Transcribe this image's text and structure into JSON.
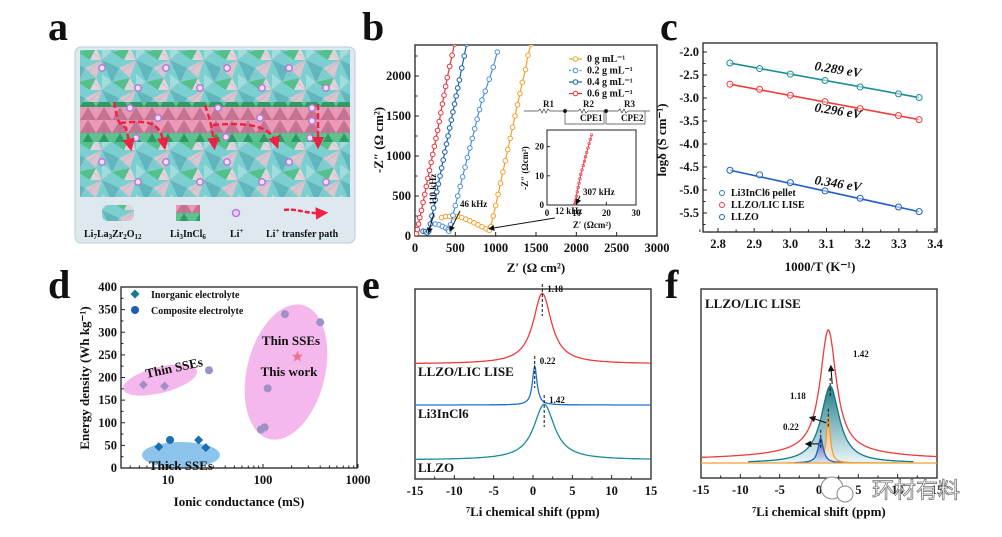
{
  "panels": {
    "a": {
      "label": "a"
    },
    "b": {
      "label": "b"
    },
    "c": {
      "label": "c"
    },
    "d": {
      "label": "d"
    },
    "e": {
      "label": "e"
    },
    "f": {
      "label": "f"
    }
  },
  "schematic": {
    "legend": [
      {
        "key": "llzo",
        "label": "Li7La3Zr2O12"
      },
      {
        "key": "lic",
        "label": "Li3InCl6"
      },
      {
        "key": "li",
        "label": "Li+"
      },
      {
        "key": "path",
        "label": "Li+ transfer path"
      }
    ],
    "colors": {
      "teal": "#6cc4c8",
      "pink": "#e7a3bd",
      "green": "#5fbf8a",
      "mauve": "#d8c1cc",
      "li_ion": "#b678d8",
      "path": "#ee2244",
      "box_bg": "#dbe8ee"
    }
  },
  "watermark": {
    "text": "环材有料"
  },
  "chart_data": [
    {
      "id": "b",
      "type": "scatter",
      "xlabel": "Z′ (Ω cm²)",
      "ylabel": "-Z″ (Ω cm²)",
      "xlim": [
        0,
        3000
      ],
      "ylim": [
        0,
        2400
      ],
      "xticks": [
        0,
        500,
        1000,
        1500,
        2000,
        2500,
        3000
      ],
      "yticks": [
        0,
        500,
        1000,
        1500,
        2000
      ],
      "legend_position": "top-right",
      "series": [
        {
          "name": "0 g mL⁻¹",
          "color": "#f0a030",
          "points": [
            [
              330,
              230
            ],
            [
              380,
              245
            ],
            [
              430,
              245
            ],
            [
              480,
              240
            ],
            [
              530,
              245
            ],
            [
              580,
              230
            ],
            [
              630,
              210
            ],
            [
              680,
              190
            ],
            [
              730,
              165
            ],
            [
              780,
              140
            ],
            [
              830,
              115
            ],
            [
              880,
              90
            ],
            [
              920,
              70
            ],
            [
              940,
              120
            ],
            [
              970,
              250
            ],
            [
              1000,
              380
            ],
            [
              1030,
              520
            ],
            [
              1060,
              660
            ],
            [
              1090,
              800
            ],
            [
              1120,
              940
            ],
            [
              1150,
              1080
            ],
            [
              1180,
              1220
            ],
            [
              1210,
              1360
            ],
            [
              1240,
              1500
            ],
            [
              1270,
              1640
            ],
            [
              1300,
              1780
            ],
            [
              1330,
              1920
            ],
            [
              1370,
              2080
            ],
            [
              1400,
              2260
            ],
            [
              1440,
              2400
            ]
          ]
        },
        {
          "name": "0.2 g mL⁻¹",
          "color": "#4a8fe0",
          "points": [
            [
              250,
              150
            ],
            [
              300,
              140
            ],
            [
              340,
              120
            ],
            [
              380,
              100
            ],
            [
              410,
              80
            ],
            [
              420,
              60
            ],
            [
              440,
              140
            ],
            [
              470,
              260
            ],
            [
              500,
              380
            ],
            [
              530,
              500
            ],
            [
              560,
              620
            ],
            [
              590,
              740
            ],
            [
              620,
              860
            ],
            [
              650,
              980
            ],
            [
              680,
              1100
            ],
            [
              710,
              1220
            ],
            [
              740,
              1340
            ],
            [
              770,
              1460
            ],
            [
              800,
              1580
            ],
            [
              830,
              1700
            ],
            [
              870,
              1810
            ],
            [
              920,
              1960
            ],
            [
              970,
              2110
            ],
            [
              1020,
              2300
            ]
          ]
        },
        {
          "name": "0.4 g mL⁻¹",
          "color": "#1a5fb4",
          "points": [
            [
              100,
              60
            ],
            [
              130,
              55
            ],
            [
              150,
              40
            ],
            [
              170,
              60
            ],
            [
              190,
              150
            ],
            [
              210,
              250
            ],
            [
              230,
              350
            ],
            [
              250,
              450
            ],
            [
              270,
              550
            ],
            [
              290,
              650
            ],
            [
              310,
              750
            ],
            [
              330,
              850
            ],
            [
              350,
              950
            ],
            [
              370,
              1050
            ],
            [
              390,
              1150
            ],
            [
              410,
              1250
            ],
            [
              430,
              1350
            ],
            [
              450,
              1450
            ],
            [
              470,
              1550
            ],
            [
              490,
              1650
            ],
            [
              510,
              1750
            ],
            [
              530,
              1850
            ],
            [
              550,
              1950
            ],
            [
              580,
              2100
            ],
            [
              610,
              2250
            ],
            [
              640,
              2400
            ]
          ]
        },
        {
          "name": "0.6 g mL⁻¹",
          "color": "#e8323a",
          "points": [
            [
              10,
              5
            ],
            [
              20,
              30
            ],
            [
              30,
              80
            ],
            [
              45,
              150
            ],
            [
              60,
              230
            ],
            [
              80,
              320
            ],
            [
              100,
              420
            ],
            [
              120,
              520
            ],
            [
              140,
              620
            ],
            [
              160,
              720
            ],
            [
              180,
              820
            ],
            [
              200,
              920
            ],
            [
              220,
              1020
            ],
            [
              240,
              1120
            ],
            [
              260,
              1220
            ],
            [
              280,
              1320
            ],
            [
              300,
              1430
            ],
            [
              320,
              1540
            ],
            [
              340,
              1650
            ],
            [
              360,
              1760
            ],
            [
              380,
              1870
            ],
            [
              400,
              1980
            ],
            [
              430,
              2120
            ],
            [
              460,
              2260
            ],
            [
              490,
              2400
            ]
          ]
        }
      ],
      "annotations": [
        {
          "text": "110 kHz",
          "x": 150,
          "y": 40
        },
        {
          "text": "46 kHz",
          "x": 420,
          "y": 60
        },
        {
          "text": "12 kHz",
          "x": 920,
          "y": 70
        }
      ],
      "circuit": {
        "elements": [
          "R1",
          "R2",
          "CPE1",
          "R3",
          "CPE2"
        ]
      },
      "inset": {
        "xlabel": "Z′ (Ωcm²)",
        "ylabel": "-Z″ (Ωcm²)",
        "xlim": [
          0,
          30
        ],
        "ylim": [
          0,
          25
        ],
        "xticks": [
          0,
          10,
          20,
          30
        ],
        "yticks": [
          0,
          10,
          20
        ],
        "annotation": {
          "text": "307 kHz",
          "x": 9.5,
          "y": 0.3
        },
        "series": [
          {
            "name": "0.6 g mL⁻¹",
            "color": "#e8323a",
            "points": [
              [
                9.3,
                0.3
              ],
              [
                9.6,
                1.5
              ],
              [
                9.9,
                3
              ],
              [
                10.2,
                4.5
              ],
              [
                10.5,
                6
              ],
              [
                10.8,
                7.5
              ],
              [
                11.1,
                9
              ],
              [
                11.4,
                10.5
              ],
              [
                11.8,
                12
              ],
              [
                12.2,
                13.5
              ],
              [
                12.6,
                15
              ],
              [
                13.0,
                16.5
              ],
              [
                13.4,
                18
              ],
              [
                13.8,
                19.5
              ],
              [
                14.2,
                21
              ],
              [
                14.6,
                22.5
              ],
              [
                15.0,
                24
              ]
            ]
          }
        ]
      }
    },
    {
      "id": "c",
      "type": "line",
      "xlabel": "1000/T (K⁻¹)",
      "ylabel": "logδ (S cm⁻¹)",
      "xlim": [
        2.75,
        3.4
      ],
      "ylim": [
        -5.9,
        -1.9
      ],
      "xticks": [
        2.8,
        2.9,
        3.0,
        3.1,
        3.2,
        3.3,
        3.4
      ],
      "yticks": [
        -2.0,
        -2.5,
        -3.0,
        -3.5,
        -4.0,
        -4.5,
        -5.0,
        -5.5
      ],
      "legend_position": "bottom-left",
      "x": [
        2.833,
        2.915,
        3.0,
        3.096,
        3.193,
        3.299,
        3.356
      ],
      "series": [
        {
          "name": "Li3InCl6 pellet",
          "color": "#1a8c96",
          "values": [
            -2.24,
            -2.36,
            -2.48,
            -2.62,
            -2.76,
            -2.91,
            -2.99
          ],
          "label": "0.289 eV",
          "label_at": [
            3.13,
            -2.47
          ]
        },
        {
          "name": "LLZO/LIC LISE",
          "color": "#ee3c3c",
          "values": [
            -2.7,
            -2.81,
            -2.94,
            -3.08,
            -3.23,
            -3.38,
            -3.47
          ],
          "label": "0.296 eV",
          "label_at": [
            3.13,
            -3.37
          ]
        },
        {
          "name": "LLZO",
          "color": "#1f5fc0",
          "values": [
            -4.57,
            -4.67,
            -4.84,
            -5.02,
            -5.18,
            -5.37,
            -5.47
          ],
          "label": "0.346 eV",
          "label_at": [
            3.13,
            -4.95
          ]
        }
      ]
    },
    {
      "id": "d",
      "type": "scatter",
      "xlabel": "Ionic conductance (mS)",
      "ylabel": "Energy density (Wh kg⁻¹)",
      "xscale": "log",
      "xlim": [
        3.2,
        1000
      ],
      "ylim": [
        0,
        400
      ],
      "xticks": [
        10,
        100,
        1000
      ],
      "yticks": [
        0,
        50,
        100,
        150,
        200,
        250,
        300,
        350,
        400
      ],
      "legend_position": "top-left",
      "legend": [
        {
          "name": "Inorganic electrolyte",
          "marker": "diamond",
          "color": "#1a7a8a"
        },
        {
          "name": "Composite electrolyte",
          "marker": "circle",
          "color": "#1a5fb4"
        }
      ],
      "series": [
        {
          "name": "Thick SSEs (inorganic)",
          "marker": "diamond",
          "color": "#1a6fae",
          "points": [
            [
              8,
              47
            ],
            [
              21,
              62
            ],
            [
              25,
              45
            ]
          ]
        },
        {
          "name": "Thick SSEs (composite)",
          "marker": "circle",
          "color": "#1a6fae",
          "points": [
            [
              10.5,
              62
            ]
          ]
        },
        {
          "name": "Thin SSEs (inorganic)",
          "marker": "diamond",
          "color": "#a090c8",
          "points": [
            [
              5.5,
              184
            ],
            [
              9.2,
              181
            ]
          ]
        },
        {
          "name": "Thin SSEs (composite, left)",
          "marker": "circle",
          "color": "#a090c8",
          "points": [
            [
              27,
              216
            ]
          ]
        },
        {
          "name": "Thin SSEs (composite, right)",
          "marker": "circle",
          "color": "#a090c8",
          "points": [
            [
              95,
              85
            ],
            [
              104,
              90
            ],
            [
              112,
              176
            ],
            [
              170,
              340
            ],
            [
              400,
              322
            ]
          ]
        },
        {
          "name": "This work",
          "marker": "star",
          "color": "#f07090",
          "points": [
            [
              230,
              246
            ]
          ]
        }
      ],
      "regions": [
        {
          "label": "Thin SSEs",
          "color": "#f5b8ec",
          "center": [
            12.5,
            200
          ],
          "kind": "left-thin"
        },
        {
          "label": "Thick SSEs",
          "color": "#8cc4ec",
          "center": [
            13,
            49
          ],
          "kind": "thick"
        },
        {
          "label": "Thin SSEs",
          "color": "#f5b8ec",
          "center": [
            190,
            228
          ],
          "kind": "right-thin"
        }
      ],
      "annotations": [
        {
          "text": "This work",
          "color": "#ee2233",
          "x": 200,
          "y": 218
        },
        {
          "text": "Thin SSEs",
          "color": "#111111",
          "x": 200,
          "y": 280
        },
        {
          "text": "Thin SSEs",
          "color": "#111111",
          "x": 9,
          "y": 215,
          "rotation_deg": -12
        },
        {
          "text": "Thick SSEs",
          "color": "#111111",
          "x": 13,
          "y": 18
        }
      ]
    },
    {
      "id": "e",
      "type": "line",
      "xlabel": "⁷Li chemical shift (ppm)",
      "ylabel": "",
      "xlim": [
        -15,
        15
      ],
      "xticks": [
        -15,
        -10,
        -5,
        0,
        5,
        10,
        15
      ],
      "series": [
        {
          "name": "LLZO/LIC LISE",
          "color": "#ee3c3c",
          "peak_ppm": 1.18,
          "peak_label": "1.18",
          "offset": 0.66,
          "height": 0.28,
          "width_ppm": 1.4
        },
        {
          "name": "Li3InCl6",
          "color": "#1f6fd0",
          "peak_ppm": 0.22,
          "peak_label": "0.22",
          "offset": 0.37,
          "height": 0.18,
          "width_ppm": 0.35
        },
        {
          "name": "LLZO",
          "color": "#1a8c9a",
          "peak_ppm": 1.42,
          "peak_label": "1.42",
          "offset": 0.0,
          "height": 0.3,
          "width_ppm": 1.6
        }
      ],
      "labels": [
        {
          "text": "LLZO/LIC LISE",
          "color": "#ee3c3c"
        },
        {
          "text": "Li3InCl6",
          "color": "#1f6fd0"
        },
        {
          "text": "LLZO",
          "color": "#1a8c9a"
        }
      ]
    },
    {
      "id": "f",
      "type": "area",
      "xlabel": "⁷Li chemical shift (ppm)",
      "xlim": [
        -15,
        15
      ],
      "xticks": [
        -15,
        -10,
        -5,
        0,
        5,
        10,
        15
      ],
      "title_label": {
        "text": "LLZO/LIC LISE",
        "color": "#ee3c3c"
      },
      "series": [
        {
          "name": "LLZO/LIC LISE (total)",
          "color": "#ee3c3c",
          "peak_ppm": 1.18,
          "height": 0.88,
          "width_ppm": 1.25,
          "fill": false
        },
        {
          "name": "LLZO component",
          "color": "#137a86",
          "peak_ppm": 1.42,
          "height": 0.55,
          "width_ppm": 1.4,
          "fill": true,
          "peak_label": "1.42"
        },
        {
          "name": "LLZO/LIC interface component",
          "color": "#f0a030",
          "peak_ppm": 1.18,
          "height": 0.33,
          "width_ppm": 0.3,
          "fill": true,
          "peak_label": "1.18"
        },
        {
          "name": "Li3InCl6 component",
          "color": "#1f5fc0",
          "peak_ppm": 0.22,
          "height": 0.18,
          "width_ppm": 0.4,
          "fill": true,
          "peak_label": "0.22"
        }
      ]
    }
  ]
}
